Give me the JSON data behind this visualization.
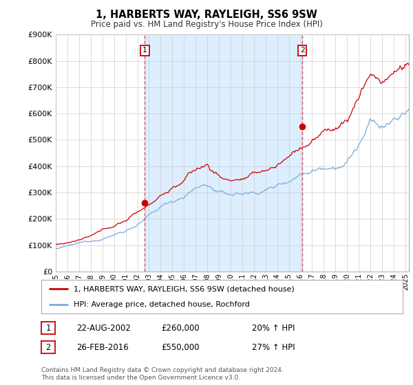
{
  "title": "1, HARBERTS WAY, RAYLEIGH, SS6 9SW",
  "subtitle": "Price paid vs. HM Land Registry's House Price Index (HPI)",
  "ylim": [
    0,
    900000
  ],
  "yticks": [
    0,
    100000,
    200000,
    300000,
    400000,
    500000,
    600000,
    700000,
    800000,
    900000
  ],
  "ytick_labels": [
    "£0",
    "£100K",
    "£200K",
    "£300K",
    "£400K",
    "£500K",
    "£600K",
    "£700K",
    "£800K",
    "£900K"
  ],
  "xlim_start": 1995.0,
  "xlim_end": 2025.3,
  "sale1_date": 2002.64,
  "sale1_price": 260000,
  "sale1_display": "22-AUG-2002",
  "sale1_hpi_pct": "20%",
  "sale2_date": 2016.15,
  "sale2_price": 550000,
  "sale2_display": "26-FEB-2016",
  "sale2_hpi_pct": "27%",
  "red_color": "#cc0000",
  "blue_color": "#7aaadd",
  "shade_color": "#ddeeff",
  "dashed_color": "#cc4444",
  "background_color": "#ffffff",
  "grid_color": "#cccccc",
  "legend_label_red": "1, HARBERTS WAY, RAYLEIGH, SS6 9SW (detached house)",
  "legend_label_blue": "HPI: Average price, detached house, Rochford",
  "footer1": "Contains HM Land Registry data © Crown copyright and database right 2024.",
  "footer2": "This data is licensed under the Open Government Licence v3.0."
}
